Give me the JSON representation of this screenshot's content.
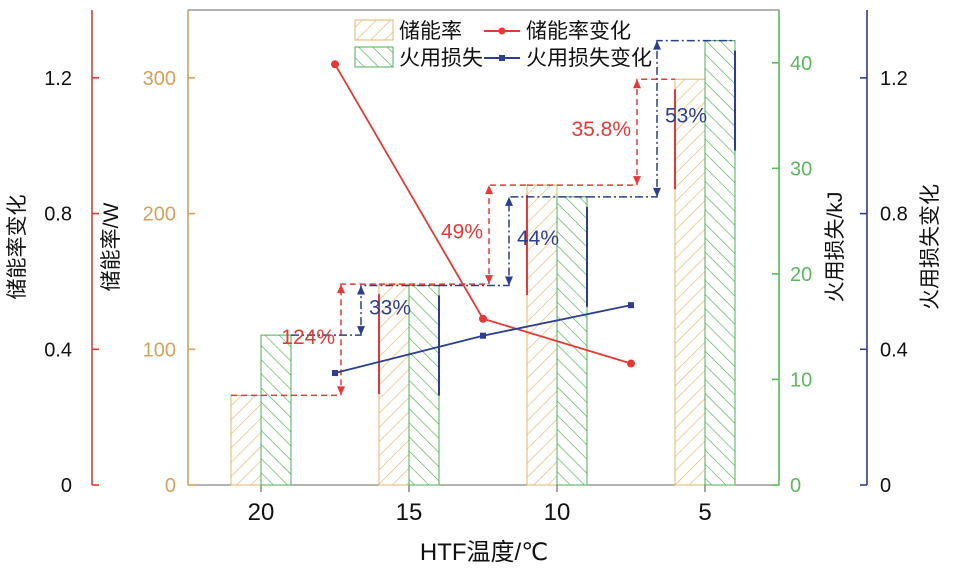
{
  "chart_data": {
    "type": "bar",
    "categories": [
      "20",
      "15",
      "10",
      "5"
    ],
    "xlabel": "HTF温度/℃",
    "axes": {
      "left_outer": {
        "label": "储能率变化",
        "ticks": [
          "0",
          "0.4",
          "0.8",
          "1.2"
        ],
        "range": [
          0,
          1.4
        ]
      },
      "left_inner": {
        "label": "储能率/W",
        "ticks": [
          "0",
          "100",
          "200",
          "300"
        ],
        "range": [
          0,
          350
        ]
      },
      "right_inner": {
        "label": "火用损失/kJ",
        "ticks": [
          "0",
          "10",
          "20",
          "30",
          "40"
        ],
        "range": [
          0,
          45
        ]
      },
      "right_outer": {
        "label": "火用损失变化",
        "ticks": [
          "0",
          "0.4",
          "0.8",
          "1.2"
        ],
        "range": [
          0,
          1.4
        ]
      }
    },
    "bars": [
      {
        "name": "储能率",
        "axis": "left_inner",
        "values": [
          66,
          148,
          221,
          299
        ]
      },
      {
        "name": "火用损失",
        "axis": "right_inner",
        "values": [
          14.2,
          18.9,
          27.3,
          42.1
        ]
      }
    ],
    "lines": [
      {
        "name": "储能率变化",
        "axis": "left_outer",
        "x": [
          17.5,
          12.5,
          7.5
        ],
        "values": [
          1.24,
          0.49,
          0.358
        ]
      },
      {
        "name": "火用损失变化",
        "axis": "right_outer",
        "x": [
          17.5,
          12.5,
          7.5
        ],
        "values": [
          0.33,
          0.44,
          0.53
        ]
      }
    ],
    "annotations": {
      "storage_change": [
        "124%",
        "49%",
        "35.8%"
      ],
      "exergy_change": [
        "33%",
        "44%",
        "53%"
      ]
    },
    "legend": {
      "placement": "top-center",
      "columns": 2
    },
    "colors": {
      "storage_bar": "#e8b46a",
      "exergy_bar": "#4caf50",
      "storage_line": "#e53935",
      "exergy_line": "#2c3e8f",
      "axis_left_outer": "#e53935",
      "axis_left_inner": "#d4a05a",
      "axis_right_inner": "#5cb85c",
      "axis_right_outer": "#2c3e8f"
    }
  }
}
